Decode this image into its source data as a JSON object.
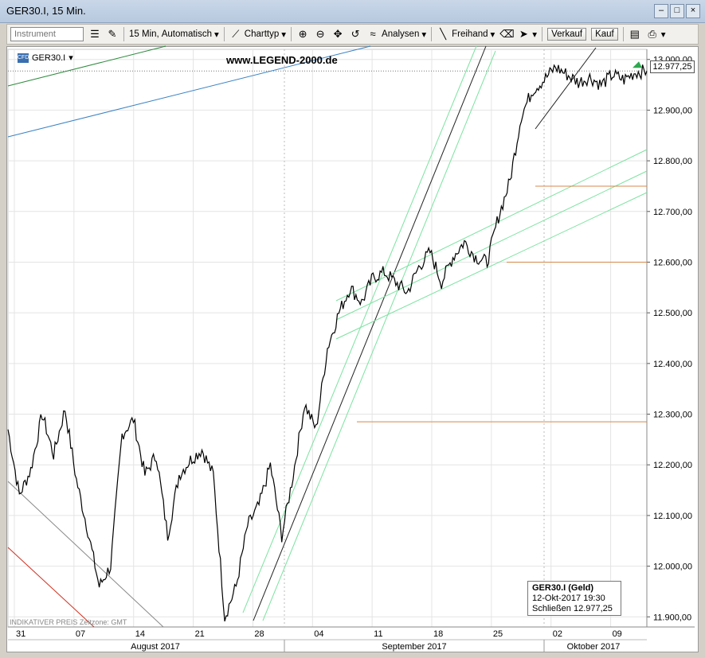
{
  "window": {
    "title": "GER30.I, 15 Min."
  },
  "toolbar": {
    "instrument_placeholder": "Instrument",
    "interval_label": "15 Min,",
    "mode_label": "Automatisch",
    "charttype_label": "Charttyp",
    "analysen_label": "Analysen",
    "freihand_label": "Freihand",
    "verkauf_label": "Verkauf",
    "kauf_label": "Kauf"
  },
  "chart_header": {
    "instrument": "GER30.I",
    "watermark": "www.LEGEND-2000.de",
    "cfd_badge": "CFD"
  },
  "footer_note": {
    "indicative": "INDIKATIVER PREIS",
    "timezone": "Zeitzone: GMT"
  },
  "infobox": {
    "title": "GER30.I (Geld)",
    "datetime": "12-Okt-2017 19:30",
    "close_label": "Schließen",
    "close_value": "12.977,25"
  },
  "chart_data": {
    "type": "line",
    "ylim": [
      11880,
      13020
    ],
    "y_ticks": [
      11900,
      12000,
      12100,
      12200,
      12300,
      12400,
      12500,
      12600,
      12700,
      12800,
      12900,
      13000
    ],
    "y_tick_labels": [
      "11.900,00",
      "12.000,00",
      "12.100,00",
      "12.200,00",
      "12.300,00",
      "12.400,00",
      "12.500,00",
      "12.600,00",
      "12.700,00",
      "12.800,00",
      "12.900,00",
      "13.000,00"
    ],
    "x_tick_labels": [
      "31",
      "07",
      "14",
      "21",
      "28",
      "04",
      "11",
      "18",
      "25",
      "02",
      "09"
    ],
    "months": [
      "August 2017",
      "September 2017",
      "Oktober 2017"
    ],
    "last_price": 12977.25,
    "last_price_label": "12.977,25",
    "horizontal_levels": [
      12285,
      12600,
      12750
    ],
    "x_range": [
      0,
      56
    ],
    "series": [
      {
        "x": [
          0,
          1,
          2,
          3,
          4,
          5,
          6,
          7,
          8,
          9,
          10,
          11,
          12,
          13,
          14,
          15,
          16,
          17,
          18,
          19,
          20,
          21,
          22,
          23,
          24,
          25,
          26,
          27,
          28,
          29,
          30,
          31,
          32,
          33,
          34,
          35,
          36,
          37,
          38,
          39,
          40,
          41,
          42,
          43,
          44,
          45,
          46,
          47,
          48,
          49,
          50,
          51,
          52,
          53,
          54,
          55,
          56
        ],
        "values": [
          12270,
          12140,
          12190,
          12300,
          12220,
          12310,
          12170,
          12070,
          11960,
          12000,
          12260,
          12290,
          12180,
          12220,
          12060,
          12180,
          12210,
          12230,
          12180,
          11900,
          11960,
          12080,
          12120,
          12200,
          12060,
          12180,
          12320,
          12270,
          12430,
          12500,
          12550,
          12520,
          12570,
          12580,
          12560,
          12540,
          12590,
          12620,
          12560,
          12610,
          12640,
          12610,
          12600,
          12690,
          12760,
          12890,
          12940,
          12960,
          12985,
          12970,
          12955,
          12965,
          12950,
          12970,
          12960,
          12975,
          12977
        ]
      }
    ]
  }
}
